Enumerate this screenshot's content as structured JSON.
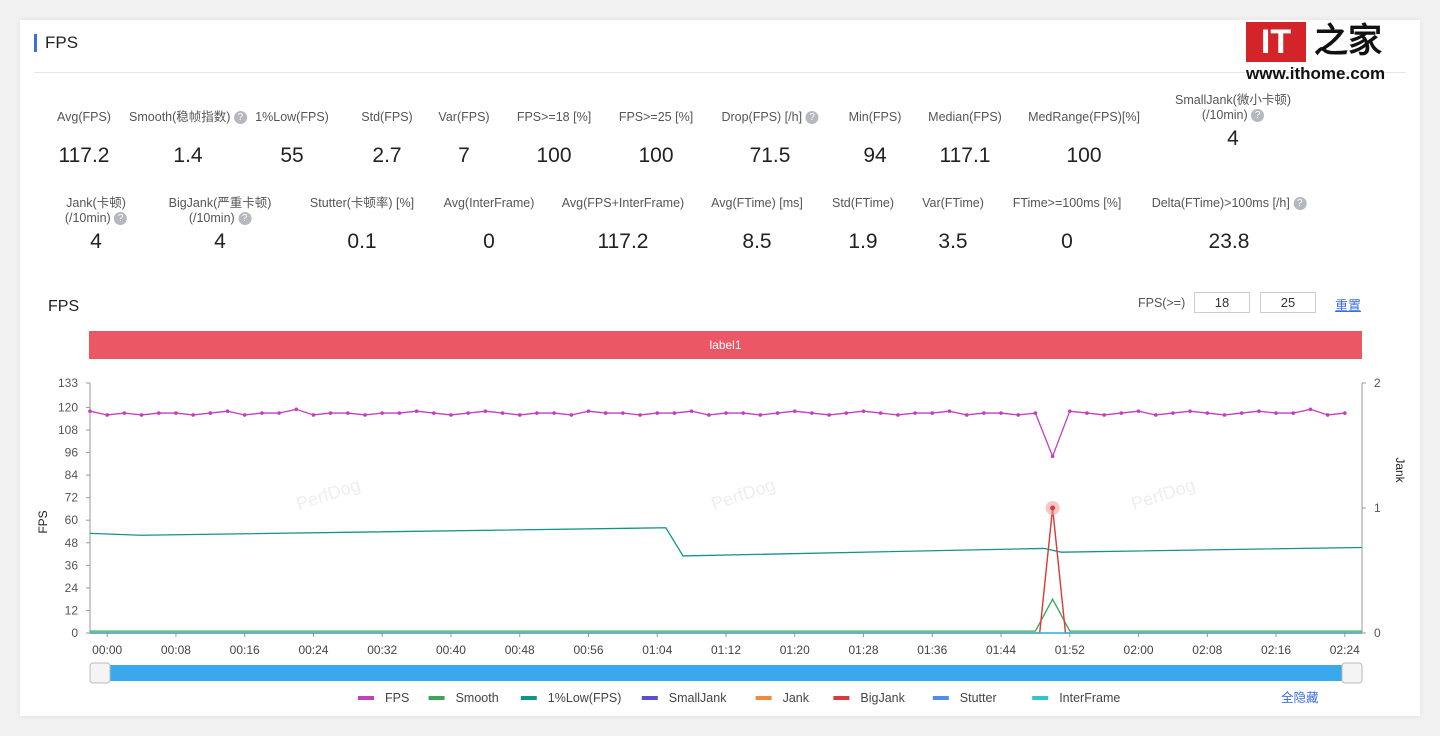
{
  "header": {
    "title": "FPS"
  },
  "stats_row1": [
    {
      "label": "Avg(FPS)",
      "value": "117.2"
    },
    {
      "label": "Smooth(稳帧指数)",
      "value": "1.4",
      "help": true
    },
    {
      "label": "1%Low(FPS)",
      "value": "55"
    },
    {
      "label": "Std(FPS)",
      "value": "2.7"
    },
    {
      "label": "Var(FPS)",
      "value": "7"
    },
    {
      "label": "FPS>=18 [%]",
      "value": "100"
    },
    {
      "label": "FPS>=25 [%]",
      "value": "100"
    },
    {
      "label": "Drop(FPS) [/h]",
      "value": "71.5",
      "help": true
    },
    {
      "label": "Min(FPS)",
      "value": "94"
    },
    {
      "label": "Median(FPS)",
      "value": "117.1"
    },
    {
      "label": "MedRange(FPS)[%]",
      "value": "100"
    },
    {
      "label": "SmallJank(微小卡顿)",
      "label2": "(/10min)",
      "value": "4",
      "help": true
    }
  ],
  "stats_row2": [
    {
      "label": "Jank(卡顿)",
      "label2": "(/10min)",
      "value": "4",
      "help": true
    },
    {
      "label": "BigJank(严重卡顿)",
      "label2": "(/10min)",
      "value": "4",
      "help": true
    },
    {
      "label": "Stutter(卡顿率) [%]",
      "value": "0.1"
    },
    {
      "label": "Avg(InterFrame)",
      "value": "0"
    },
    {
      "label": "Avg(FPS+InterFrame)",
      "value": "117.2"
    },
    {
      "label": "Avg(FTime) [ms]",
      "value": "8.5"
    },
    {
      "label": "Std(FTime)",
      "value": "1.9"
    },
    {
      "label": "Var(FTime)",
      "value": "3.5"
    },
    {
      "label": "FTime>=100ms [%]",
      "value": "0"
    },
    {
      "label": "Delta(FTime)>100ms [/h]",
      "value": "23.8",
      "help": true
    }
  ],
  "chart_header": {
    "title": "FPS",
    "threshold_label": "FPS(>=)",
    "threshold1": "18",
    "threshold2": "25",
    "reset": "重置",
    "band_label": "label1",
    "hide_all": "全隐藏"
  },
  "watermark": "PerfDog",
  "logo": {
    "text": "IT之家",
    "url_text": "www.ithome.com"
  },
  "chart_data": {
    "type": "line",
    "title": "FPS",
    "ylabel": "FPS",
    "y2label": "Jank",
    "ylim": [
      0,
      133
    ],
    "y2lim": [
      0,
      2
    ],
    "yticks": [
      0,
      12,
      24,
      36,
      48,
      60,
      72,
      84,
      96,
      108,
      120,
      133
    ],
    "y2ticks": [
      0,
      1,
      2
    ],
    "xlim_seconds": [
      -2,
      146
    ],
    "xticks": [
      "00:00",
      "00:08",
      "00:16",
      "00:24",
      "00:32",
      "00:40",
      "00:48",
      "00:56",
      "01:04",
      "01:12",
      "01:20",
      "01:28",
      "01:36",
      "01:44",
      "01:52",
      "02:00",
      "02:08",
      "02:16",
      "02:24"
    ],
    "fps_x_step_seconds": 2,
    "series": [
      {
        "name": "FPS",
        "color": "#c23fbf",
        "axis": "left",
        "values": [
          118,
          116,
          117,
          116,
          117,
          117,
          116,
          117,
          118,
          116,
          117,
          117,
          119,
          116,
          117,
          117,
          116,
          117,
          117,
          118,
          117,
          116,
          117,
          118,
          117,
          116,
          117,
          117,
          116,
          118,
          117,
          117,
          116,
          117,
          117,
          118,
          116,
          117,
          117,
          116,
          117,
          118,
          117,
          116,
          117,
          118,
          117,
          116,
          117,
          117,
          118,
          116,
          117,
          117,
          116,
          117,
          94,
          118,
          117,
          116,
          117,
          118,
          116,
          117,
          118,
          117,
          116,
          117,
          118,
          117,
          117,
          119,
          116,
          117
        ]
      },
      {
        "name": "Smooth",
        "color": "#3aa757",
        "axis": "left",
        "points": [
          [
            -2,
            1
          ],
          [
            108,
            1
          ],
          [
            110,
            18
          ],
          [
            112,
            1
          ],
          [
            146,
            1
          ]
        ]
      },
      {
        "name": "1%Low(FPS)",
        "color": "#13948a",
        "axis": "left",
        "points": [
          [
            -2,
            53
          ],
          [
            4,
            52
          ],
          [
            65,
            56
          ],
          [
            67,
            41
          ],
          [
            109,
            45
          ],
          [
            111,
            43
          ],
          [
            146,
            45.5
          ]
        ]
      },
      {
        "name": "SmallJank",
        "color": "#5b4fcf",
        "axis": "right",
        "points": [
          [
            -2,
            0
          ],
          [
            146,
            0
          ]
        ]
      },
      {
        "name": "Jank",
        "color": "#f08a3e",
        "axis": "right",
        "points": [
          [
            -2,
            0
          ],
          [
            108.5,
            0
          ],
          [
            110,
            1
          ],
          [
            111.5,
            0
          ],
          [
            146,
            0
          ]
        ]
      },
      {
        "name": "BigJank",
        "color": "#d9393f",
        "axis": "right",
        "points": [
          [
            -2,
            0
          ],
          [
            108.5,
            0
          ],
          [
            110,
            1
          ],
          [
            111.5,
            0
          ],
          [
            146,
            0
          ]
        ]
      },
      {
        "name": "Stutter",
        "color": "#4b8fe8",
        "axis": "left",
        "points": [
          [
            -2,
            0
          ],
          [
            146,
            0
          ]
        ]
      },
      {
        "name": "InterFrame",
        "color": "#2ec4d6",
        "axis": "left",
        "points": [
          [
            -2,
            0
          ],
          [
            146,
            0
          ]
        ]
      }
    ]
  }
}
